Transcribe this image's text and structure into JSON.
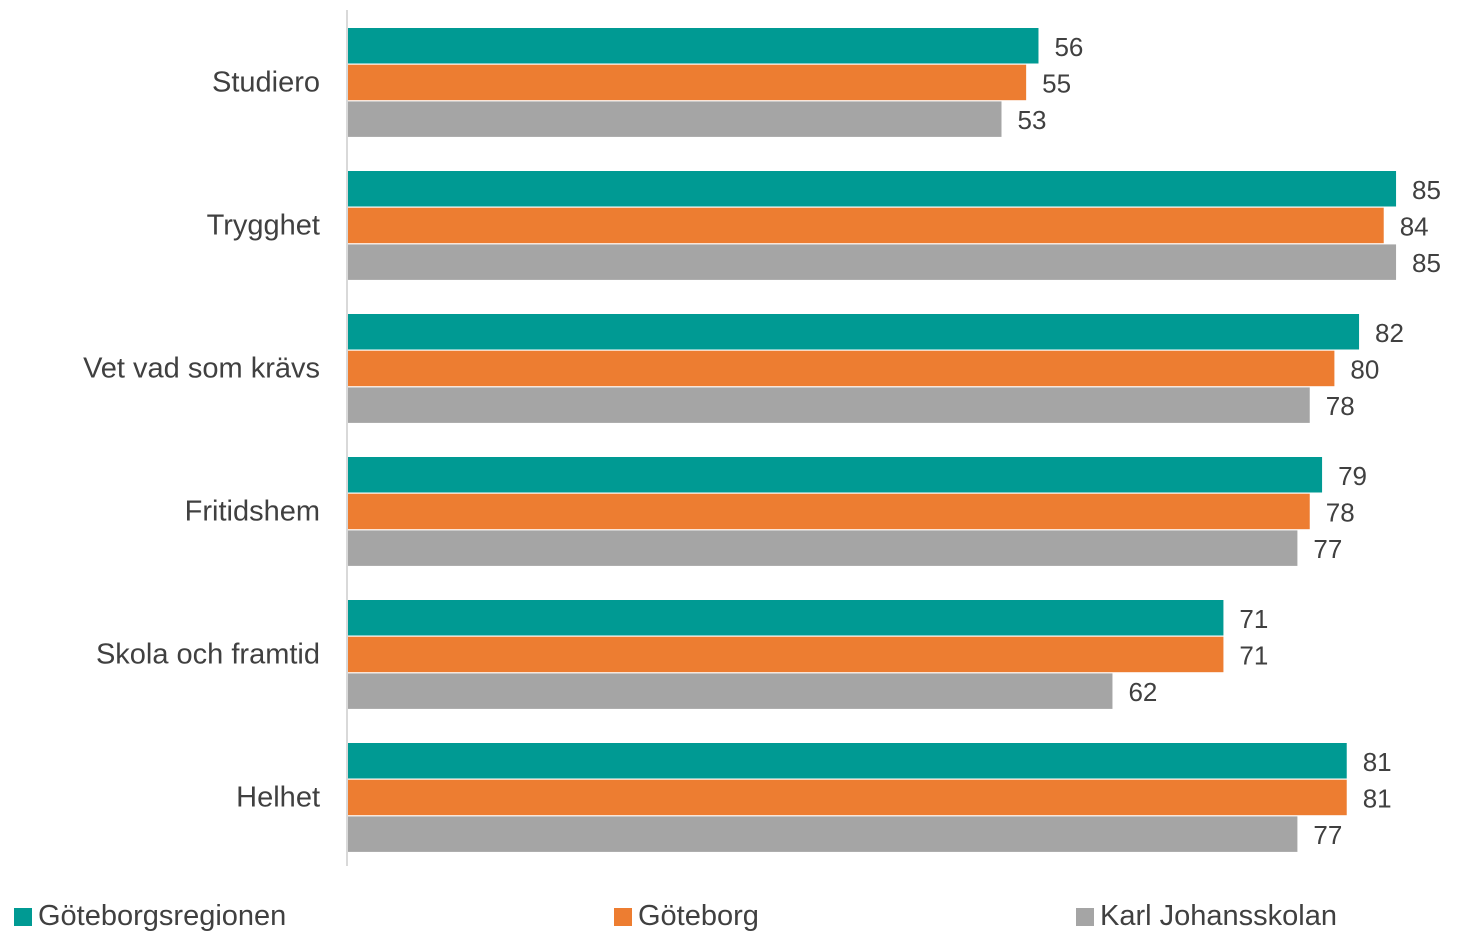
{
  "chart_data": {
    "type": "bar",
    "orientation": "horizontal",
    "categories": [
      "Studiero",
      "Trygghet",
      "Vet vad som krävs",
      "Fritidshem",
      "Skola och framtid",
      "Helhet"
    ],
    "series": [
      {
        "name": "Göteborgsregionen",
        "color": "#009A93",
        "values": [
          56,
          85,
          82,
          79,
          71,
          81
        ]
      },
      {
        "name": "Göteborg",
        "color": "#ED7D31",
        "values": [
          55,
          84,
          80,
          78,
          71,
          81
        ]
      },
      {
        "name": "Karl Johansskolan",
        "color": "#A5A5A5",
        "values": [
          53,
          85,
          78,
          77,
          62,
          77
        ]
      }
    ],
    "xlim": [
      0,
      88
    ],
    "grid": false,
    "data_labels": true,
    "legend_position": "bottom"
  }
}
